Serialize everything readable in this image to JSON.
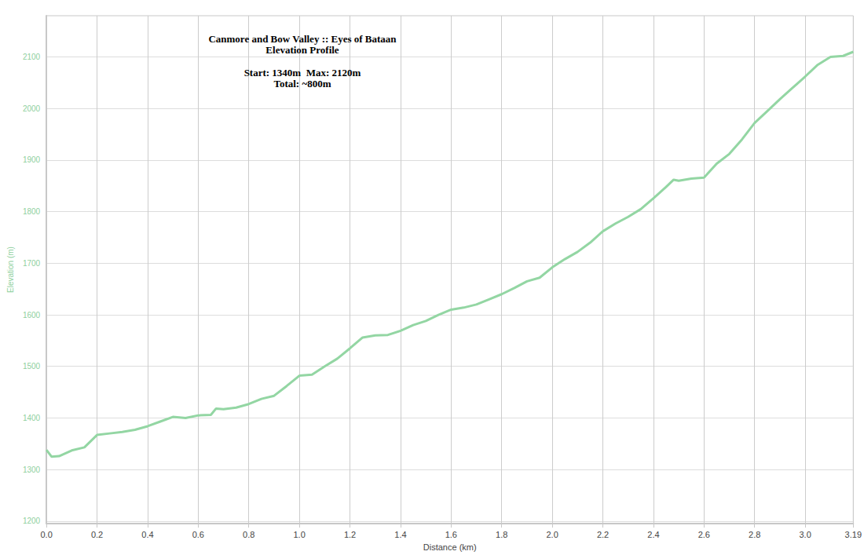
{
  "chart_data": {
    "type": "line",
    "title": "Canmore and Bow Valley :: Eyes of Bataan",
    "subtitle": "Elevation Profile",
    "annotations": [
      "Start: 1340m  Max: 2120m",
      "Total: ~800m"
    ],
    "x_label": "Distance (km)",
    "y_label": "Elevation (m)",
    "x": [
      0,
      0.02,
      0.05,
      0.1,
      0.15,
      0.2,
      0.25,
      0.3,
      0.35,
      0.4,
      0.45,
      0.5,
      0.55,
      0.6,
      0.65,
      0.67,
      0.7,
      0.75,
      0.8,
      0.85,
      0.9,
      0.95,
      1.0,
      1.05,
      1.1,
      1.15,
      1.2,
      1.25,
      1.3,
      1.35,
      1.4,
      1.45,
      1.5,
      1.55,
      1.6,
      1.65,
      1.7,
      1.75,
      1.8,
      1.85,
      1.9,
      1.95,
      2.0,
      2.05,
      2.1,
      2.15,
      2.2,
      2.25,
      2.3,
      2.35,
      2.4,
      2.45,
      2.48,
      2.5,
      2.55,
      2.6,
      2.65,
      2.7,
      2.75,
      2.8,
      2.85,
      2.9,
      2.95,
      3.0,
      3.05,
      3.1,
      3.15,
      3.19
    ],
    "values": [
      1338,
      1325,
      1326,
      1337,
      1343,
      1367,
      1370,
      1373,
      1377,
      1384,
      1393,
      1402,
      1400,
      1405,
      1406,
      1418,
      1417,
      1420,
      1427,
      1437,
      1443,
      1462,
      1482,
      1484,
      1500,
      1515,
      1535,
      1556,
      1560,
      1561,
      1569,
      1580,
      1588,
      1600,
      1610,
      1614,
      1620,
      1630,
      1640,
      1652,
      1665,
      1672,
      1692,
      1708,
      1722,
      1740,
      1762,
      1777,
      1790,
      1805,
      1826,
      1848,
      1862,
      1860,
      1864,
      1866,
      1893,
      1912,
      1940,
      1972,
      1995,
      2018,
      2040,
      2062,
      2085,
      2100,
      2102,
      2110
    ],
    "color": "#93d6a3",
    "xlim": [
      0,
      3.19
    ],
    "xticks": [
      {
        "value": 0,
        "label": "0.0"
      },
      0.2,
      0.4,
      0.6,
      0.8,
      {
        "value": 1,
        "label": "1.0"
      },
      1.2,
      1.4,
      1.6,
      1.8,
      {
        "value": 2,
        "label": "2.0"
      },
      2.2,
      2.4,
      2.6,
      2.8,
      {
        "value": 3,
        "label": "3.0"
      },
      3.19
    ],
    "ylim": [
      1195,
      2180
    ],
    "yticks": [
      1200,
      1300,
      1400,
      1500,
      1600,
      1700,
      1800,
      1900,
      2000,
      2100
    ],
    "grid": true
  }
}
